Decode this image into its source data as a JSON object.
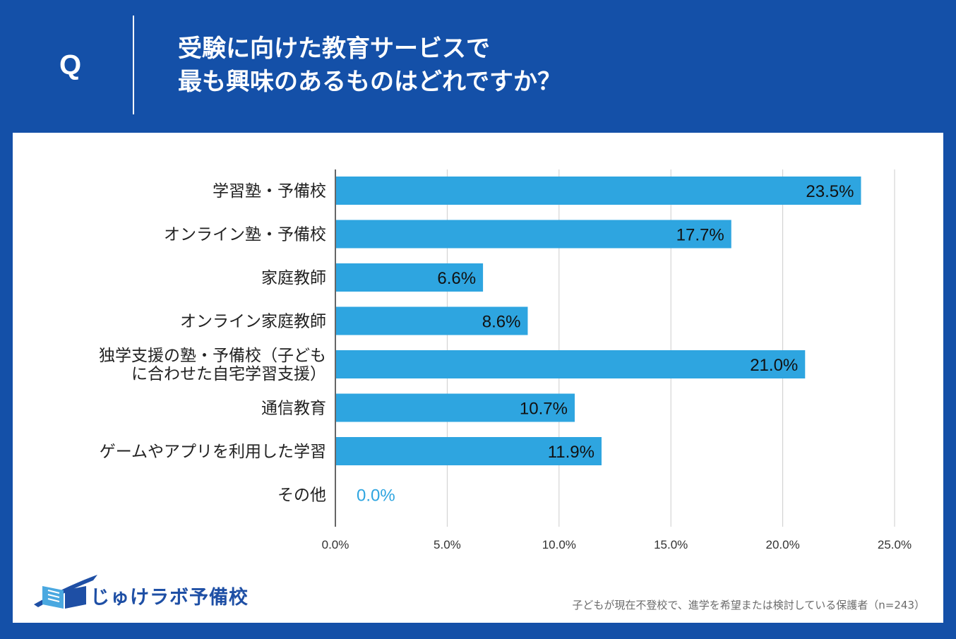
{
  "header": {
    "q_mark": "Q",
    "question_line1": "受験に向けた教育サービスで",
    "question_line2": "最も興味のあるものはどれですか？"
  },
  "colors": {
    "background": "#1450a8",
    "bar": "#2ea5e0",
    "zero_label": "#2ea5e0",
    "grid": "#cccccc"
  },
  "chart_data": {
    "type": "bar",
    "orientation": "horizontal",
    "categories": [
      [
        "学習塾・予備校"
      ],
      [
        "オンライン塾・予備校"
      ],
      [
        "家庭教師"
      ],
      [
        "オンライン家庭教師"
      ],
      [
        "独学支援の塾・予備校（子ども",
        "に合わせた自宅学習支援）"
      ],
      [
        "通信教育"
      ],
      [
        "ゲームやアプリを利用した学習"
      ],
      [
        "その他"
      ]
    ],
    "values": [
      23.5,
      17.7,
      6.6,
      8.6,
      21.0,
      10.7,
      11.9,
      0.0
    ],
    "value_labels": [
      "23.5%",
      "17.7%",
      "6.6%",
      "8.6%",
      "21.0%",
      "10.7%",
      "11.9%",
      "0.0%"
    ],
    "xlim": [
      0,
      25
    ],
    "xticks": [
      "0.0%",
      "5.0%",
      "10.0%",
      "15.0%",
      "20.0%",
      "25.0%"
    ],
    "grid": true
  },
  "logo": {
    "text": "じゅけラボ予備校"
  },
  "footnote": "子どもが現在不登校で、進学を希望または検討している保護者（n=243）"
}
